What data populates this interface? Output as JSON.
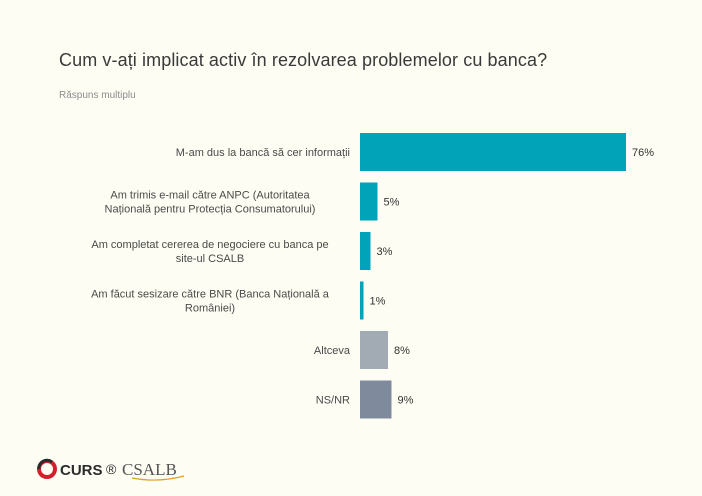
{
  "title": "Cum v-ați implicat activ în rezolvarea problemelor cu banca?",
  "subtitle": "Răspuns multiplu",
  "chart_data": {
    "type": "bar",
    "orientation": "horizontal",
    "title": "Cum v-ați implicat activ în rezolvarea problemelor cu banca?",
    "subtitle": "Răspuns multiplu",
    "xlim": [
      0,
      100
    ],
    "grid": false,
    "legend": "none",
    "bars": [
      {
        "label_lines": [
          "M-am dus la bancă să cer informații"
        ],
        "value": 76,
        "value_label": "76%",
        "color": "#00a3b8"
      },
      {
        "label_lines": [
          "Am trimis e-mail către ANPC (Autoritatea",
          "Națională pentru Protecția Consumatorului)"
        ],
        "value": 5,
        "value_label": "5%",
        "color": "#00a3b8"
      },
      {
        "label_lines": [
          "Am completat cererea de negociere cu banca pe",
          "site-ul CSALB"
        ],
        "value": 3,
        "value_label": "3%",
        "color": "#00a3b8"
      },
      {
        "label_lines": [
          "Am făcut sesizare către BNR (Banca Națională a",
          "României)"
        ],
        "value": 1,
        "value_label": "1%",
        "color": "#00a3b8"
      },
      {
        "label_lines": [
          "Altceva"
        ],
        "value": 8,
        "value_label": "8%",
        "color": "#a2aab3"
      },
      {
        "label_lines": [
          "NS/NR"
        ],
        "value": 9,
        "value_label": "9%",
        "color": "#7f8a9c"
      }
    ]
  },
  "logos": {
    "curs": "CURS",
    "registered": "®",
    "csalb": "CSALB"
  }
}
